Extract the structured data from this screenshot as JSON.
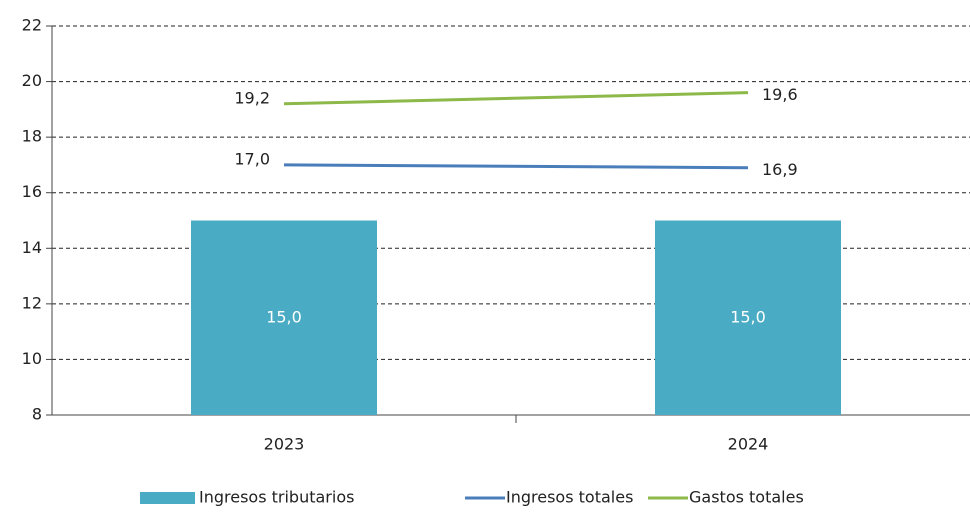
{
  "chart_data": {
    "type": "bar",
    "categories": [
      "2023",
      "2024"
    ],
    "series": [
      {
        "name": "Ingresos tributarios",
        "type": "bar",
        "color": "#4aabc4",
        "values": [
          15.0,
          15.0
        ],
        "value_labels": [
          "15,0",
          "15,0"
        ]
      },
      {
        "name": "Ingresos totales",
        "type": "line",
        "color": "#4a7ebb",
        "values": [
          17.0,
          16.9
        ],
        "value_labels": [
          "17,0",
          "16,9"
        ]
      },
      {
        "name": "Gastos totales",
        "type": "line",
        "color": "#8db84a",
        "values": [
          19.2,
          19.6
        ],
        "value_labels": [
          "19,2",
          "19,6"
        ]
      }
    ],
    "ylim": [
      8,
      22
    ],
    "yticks": [
      8,
      10,
      12,
      14,
      16,
      18,
      20,
      22
    ],
    "grid": true,
    "legend": "bottom"
  }
}
